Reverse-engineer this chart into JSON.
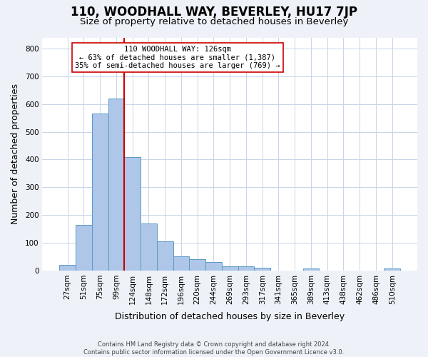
{
  "title": "110, WOODHALL WAY, BEVERLEY, HU17 7JP",
  "subtitle": "Size of property relative to detached houses in Beverley",
  "xlabel": "Distribution of detached houses by size in Beverley",
  "ylabel": "Number of detached properties",
  "categories": [
    "27sqm",
    "51sqm",
    "75sqm",
    "99sqm",
    "124sqm",
    "148sqm",
    "172sqm",
    "196sqm",
    "220sqm",
    "244sqm",
    "269sqm",
    "293sqm",
    "317sqm",
    "341sqm",
    "365sqm",
    "389sqm",
    "413sqm",
    "438sqm",
    "462sqm",
    "486sqm",
    "510sqm"
  ],
  "values": [
    20,
    165,
    565,
    620,
    410,
    170,
    105,
    50,
    40,
    30,
    15,
    15,
    10,
    0,
    0,
    8,
    0,
    0,
    0,
    0,
    7
  ],
  "bar_color": "#aec6e8",
  "bar_edge_color": "#5a9ac8",
  "vline_pos": 3.5,
  "vline_color": "#cc0000",
  "annotation_line1": "110 WOODHALL WAY: 126sqm",
  "annotation_line2": "← 63% of detached houses are smaller (1,387)",
  "annotation_line3": "35% of semi-detached houses are larger (769) →",
  "annotation_box_edge": "#cc0000",
  "ylim": [
    0,
    840
  ],
  "yticks": [
    0,
    100,
    200,
    300,
    400,
    500,
    600,
    700,
    800
  ],
  "footnote_line1": "Contains HM Land Registry data © Crown copyright and database right 2024.",
  "footnote_line2": "Contains public sector information licensed under the Open Government Licence v3.0.",
  "bg_color": "#eef2f8",
  "plot_bg_color": "#ffffff",
  "grid_color": "#c8d4e8",
  "title_fontsize": 12,
  "subtitle_fontsize": 9.5,
  "label_fontsize": 9,
  "tick_fontsize": 7.5
}
